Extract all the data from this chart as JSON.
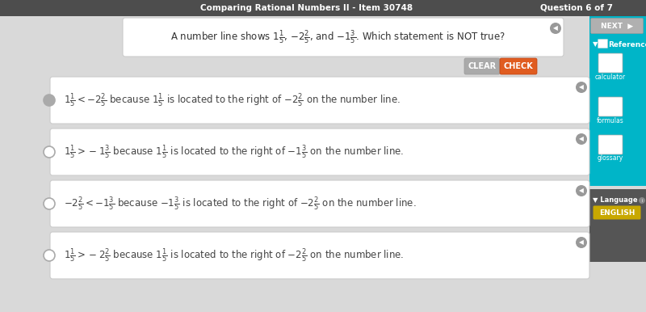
{
  "title_bar_text": "Comparing Rational Numbers II - Item 30748",
  "title_bar_right": "Question 6 of 7",
  "title_bar_color": "#4d4d4d",
  "title_bar_text_color": "#ffffff",
  "bg_color": "#d9d9d9",
  "clear_btn_color": "#999999",
  "check_btn_color": "#e05c20",
  "answers": [
    "$1\\frac{1}{5} < -2\\frac{2}{5}$ because $1\\frac{1}{5}$ is located to the right of $-2\\frac{2}{5}$ on the number line.",
    "$1\\frac{1}{5} > -1\\frac{3}{5}$ because $1\\frac{1}{5}$ is located to the right of $-1\\frac{3}{5}$ on the number line.",
    "$-2\\frac{2}{5} < -1\\frac{3}{5}$ because $-1\\frac{3}{5}$ is located to the right of $-2\\frac{2}{5}$ on the number line.",
    "$1\\frac{1}{5} > -2\\frac{2}{5}$ because $1\\frac{1}{5}$ is located to the right of $-2\\frac{2}{5}$ on the number line."
  ],
  "answer_box_color": "#ffffff",
  "answer_text_color": "#444444",
  "sidebar_teal": "#00b5c8",
  "sidebar_dark": "#555555",
  "english_btn_color": "#c8a800",
  "next_btn_color": "#b0b0b0",
  "speaker_color": "#888888",
  "radio_fill_0": "#aaaaaa",
  "radio_fill_other": "#ffffff",
  "figwidth": 8.0,
  "figheight": 3.86,
  "dpi": 100
}
